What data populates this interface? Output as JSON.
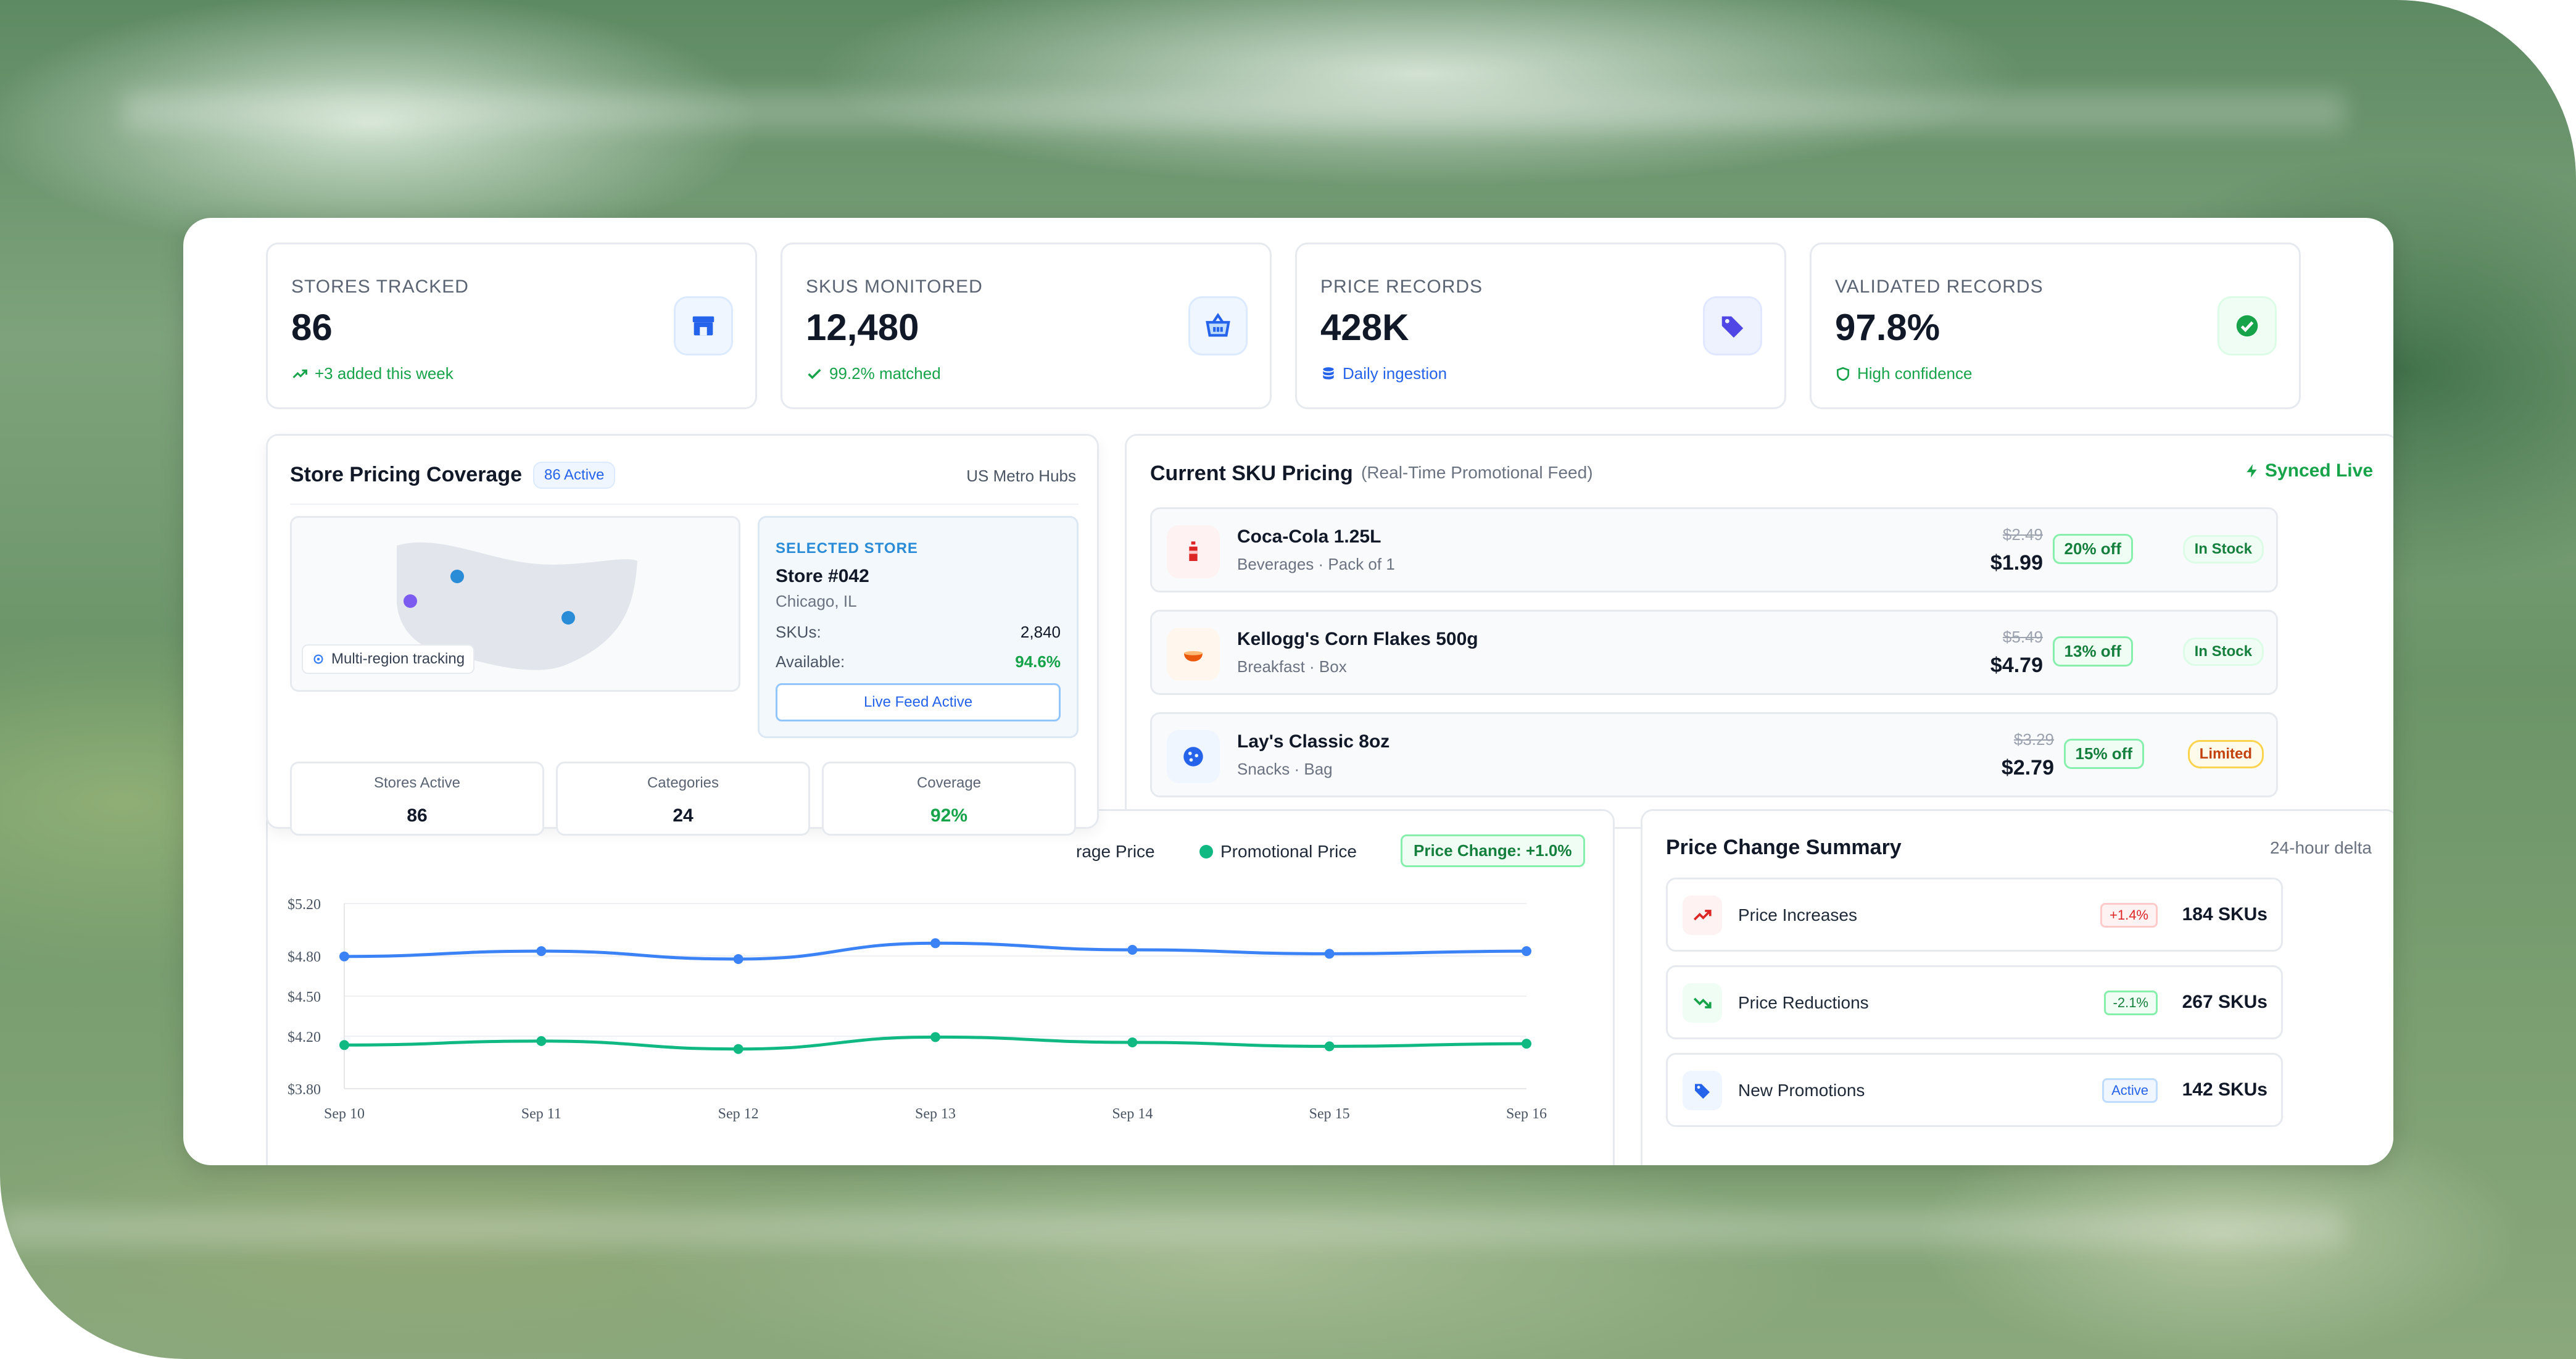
{
  "kpis": [
    {
      "label": "STORES TRACKED",
      "value": "86",
      "sub": "+3 added this week",
      "icon": "store-icon",
      "color": "#2563eb"
    },
    {
      "label": "SKUS MONITORED",
      "value": "12,480",
      "sub": "99.2% matched",
      "icon": "basket-icon",
      "color": "#2563eb"
    },
    {
      "label": "PRICE RECORDS",
      "value": "428K",
      "sub": "Daily ingestion",
      "icon": "tag-icon",
      "color": "#4f46e5"
    },
    {
      "label": "VALIDATED RECORDS",
      "value": "97.8%",
      "sub": "High confidence",
      "icon": "check-circle-icon",
      "color": "#16a34a"
    }
  ],
  "coverage": {
    "title": "Store Pricing Coverage",
    "badge": "86 Active",
    "region": "US Metro Hubs",
    "map_label": "Multi-region tracking",
    "selected": {
      "heading": "SELECTED STORE",
      "store": "Store #042",
      "city": "Chicago, IL",
      "skus_label": "SKUs:",
      "skus_value": "2,840",
      "avail_label": "Available:",
      "avail_value": "94.6%",
      "button": "Live Feed Active"
    },
    "stats": [
      {
        "label": "Stores Active",
        "value": "86"
      },
      {
        "label": "Categories",
        "value": "24"
      },
      {
        "label": "Coverage",
        "value": "92%"
      }
    ]
  },
  "sku": {
    "title": "Current SKU Pricing",
    "subtitle": "(Real-Time Promotional Feed)",
    "sync": "Synced Live",
    "items": [
      {
        "name": "Coca-Cola 1.25L",
        "meta": "Beverages · Pack of 1",
        "old": "$2.49",
        "price": "$1.99",
        "discount": "20% off",
        "status": "In Stock",
        "icon": "bottle-icon"
      },
      {
        "name": "Kellogg's Corn Flakes 500g",
        "meta": "Breakfast · Box",
        "old": "$5.49",
        "price": "$4.79",
        "discount": "13% off",
        "status": "In Stock",
        "icon": "bowl-icon"
      },
      {
        "name": "Lay's Classic 8oz",
        "meta": "Snacks · Bag",
        "old": "$3.29",
        "price": "$2.79",
        "discount": "15% off",
        "status": "Limited",
        "icon": "cookie-icon"
      }
    ]
  },
  "chart_legend": {
    "avg_fragment": "rage Price",
    "promo": "Promotional Price",
    "change": "Price Change: +1.0%"
  },
  "chart_data": {
    "type": "line",
    "categories": [
      "Sep 10",
      "Sep 11",
      "Sep 12",
      "Sep 13",
      "Sep 14",
      "Sep 15",
      "Sep 16"
    ],
    "y_ticks": [
      "$5.20",
      "$4.80",
      "$4.50",
      "$4.20",
      "$3.80"
    ],
    "ylim": [
      3.8,
      5.2
    ],
    "series": [
      {
        "name": "Average Price",
        "color": "#3b82f6",
        "values": [
          4.8,
          4.84,
          4.78,
          4.9,
          4.85,
          4.82,
          4.84
        ]
      },
      {
        "name": "Promotional Price",
        "color": "#10b981",
        "values": [
          4.13,
          4.16,
          4.1,
          4.19,
          4.15,
          4.12,
          4.14
        ]
      }
    ]
  },
  "summary": {
    "title": "Price Change Summary",
    "delta": "24-hour delta",
    "rows": [
      {
        "label": "Price Increases",
        "badge": "+1.4%",
        "count": "184 SKUs",
        "icon": "trend-up-icon"
      },
      {
        "label": "Price Reductions",
        "badge": "-2.1%",
        "count": "267 SKUs",
        "icon": "trend-down-icon"
      },
      {
        "label": "New Promotions",
        "badge": "Active",
        "count": "142 SKUs",
        "icon": "tag-icon"
      }
    ]
  }
}
